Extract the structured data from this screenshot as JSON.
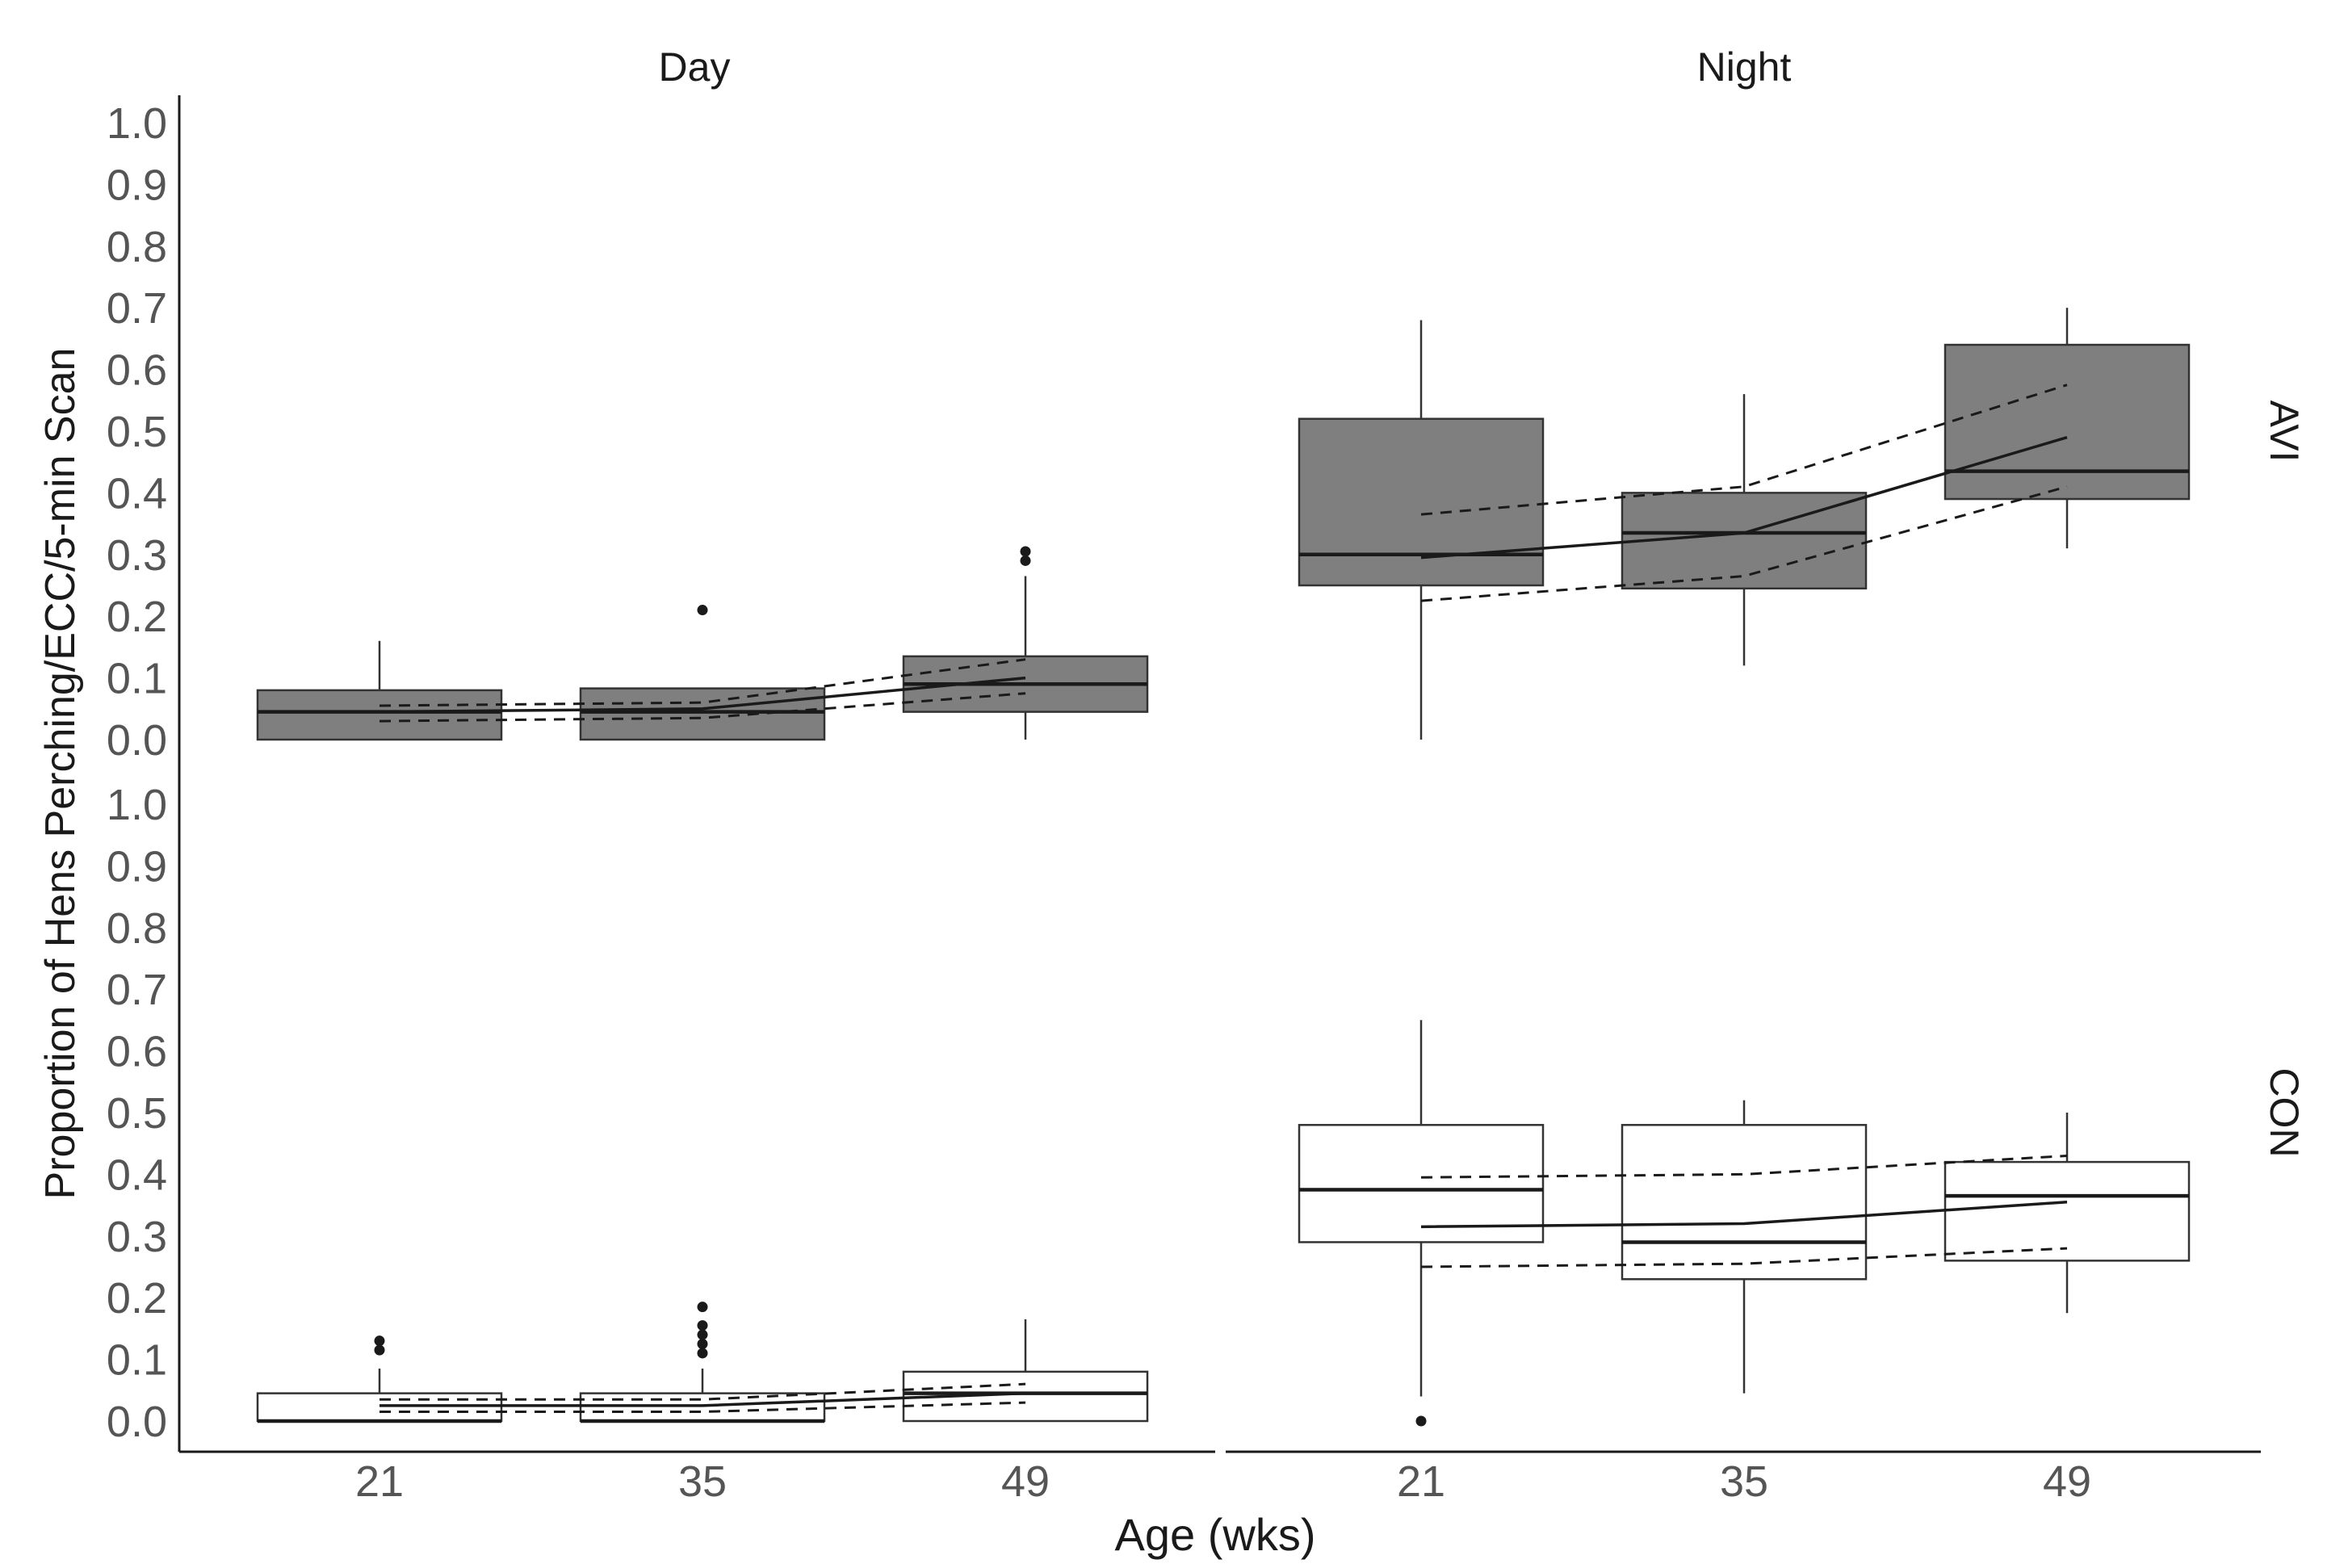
{
  "chart_data": {
    "type": "boxplot",
    "ylabel": "Proportion of Hens Perching/ECC/5-min Scan",
    "xlabel": "Age (wks)",
    "categories": [
      "21",
      "35",
      "49"
    ],
    "yticks": [
      "0.0",
      "0.1",
      "0.2",
      "0.3",
      "0.4",
      "0.5",
      "0.6",
      "0.7",
      "0.8",
      "0.9",
      "1.0"
    ],
    "ylim": [
      0,
      1
    ],
    "columns": [
      "Day",
      "Night"
    ],
    "rows": [
      "AVI",
      "CON"
    ],
    "colors": {
      "AVI": "#7f7f7f",
      "CON": "#ffffff",
      "line": "#1a1a1a"
    },
    "panels": [
      {
        "row": "AVI",
        "column": "Day",
        "boxes": [
          {
            "category": "21",
            "whisker_low": 0.0,
            "q1": 0.0,
            "median": 0.045,
            "q3": 0.08,
            "whisker_high": 0.16,
            "outliers": []
          },
          {
            "category": "35",
            "whisker_low": 0.0,
            "q1": 0.0,
            "median": 0.045,
            "q3": 0.083,
            "whisker_high": 0.083,
            "outliers": [
              0.21
            ]
          },
          {
            "category": "49",
            "whisker_low": 0.0,
            "q1": 0.045,
            "median": 0.09,
            "q3": 0.135,
            "whisker_high": 0.265,
            "outliers": [
              0.29,
              0.305
            ]
          }
        ],
        "fit": [
          0.045,
          0.05,
          0.1
        ],
        "ci_upper": [
          0.055,
          0.06,
          0.13
        ],
        "ci_lower": [
          0.03,
          0.035,
          0.075
        ]
      },
      {
        "row": "AVI",
        "column": "Night",
        "boxes": [
          {
            "category": "21",
            "whisker_low": 0.0,
            "q1": 0.25,
            "median": 0.3,
            "q3": 0.52,
            "whisker_high": 0.68,
            "outliers": []
          },
          {
            "category": "35",
            "whisker_low": 0.12,
            "q1": 0.245,
            "median": 0.335,
            "q3": 0.4,
            "whisker_high": 0.56,
            "outliers": []
          },
          {
            "category": "49",
            "whisker_low": 0.31,
            "q1": 0.39,
            "median": 0.435,
            "q3": 0.64,
            "whisker_high": 0.7,
            "outliers": []
          }
        ],
        "fit": [
          0.295,
          0.335,
          0.49
        ],
        "ci_upper": [
          0.365,
          0.41,
          0.575
        ],
        "ci_lower": [
          0.225,
          0.265,
          0.41
        ]
      },
      {
        "row": "CON",
        "column": "Day",
        "boxes": [
          {
            "category": "21",
            "whisker_low": 0.0,
            "q1": 0.0,
            "median": 0.0,
            "q3": 0.045,
            "whisker_high": 0.085,
            "outliers": [
              0.115,
              0.13
            ]
          },
          {
            "category": "35",
            "whisker_low": 0.0,
            "q1": 0.0,
            "median": 0.0,
            "q3": 0.045,
            "whisker_high": 0.085,
            "outliers": [
              0.11,
              0.125,
              0.14,
              0.155,
              0.185
            ]
          },
          {
            "category": "49",
            "whisker_low": 0.0,
            "q1": 0.0,
            "median": 0.045,
            "q3": 0.08,
            "whisker_high": 0.165,
            "outliers": []
          }
        ],
        "fit": [
          0.025,
          0.025,
          0.045
        ],
        "ci_upper": [
          0.035,
          0.035,
          0.06
        ],
        "ci_lower": [
          0.015,
          0.015,
          0.03
        ]
      },
      {
        "row": "CON",
        "column": "Night",
        "boxes": [
          {
            "category": "21",
            "whisker_low": 0.04,
            "q1": 0.29,
            "median": 0.375,
            "q3": 0.48,
            "whisker_high": 0.65,
            "outliers": [
              0.0
            ]
          },
          {
            "category": "35",
            "whisker_low": 0.045,
            "q1": 0.23,
            "median": 0.29,
            "q3": 0.48,
            "whisker_high": 0.52,
            "outliers": []
          },
          {
            "category": "49",
            "whisker_low": 0.175,
            "q1": 0.26,
            "median": 0.365,
            "q3": 0.42,
            "whisker_high": 0.5,
            "outliers": []
          }
        ],
        "fit": [
          0.315,
          0.32,
          0.355
        ],
        "ci_upper": [
          0.395,
          0.4,
          0.43
        ],
        "ci_lower": [
          0.25,
          0.255,
          0.28
        ]
      }
    ]
  }
}
